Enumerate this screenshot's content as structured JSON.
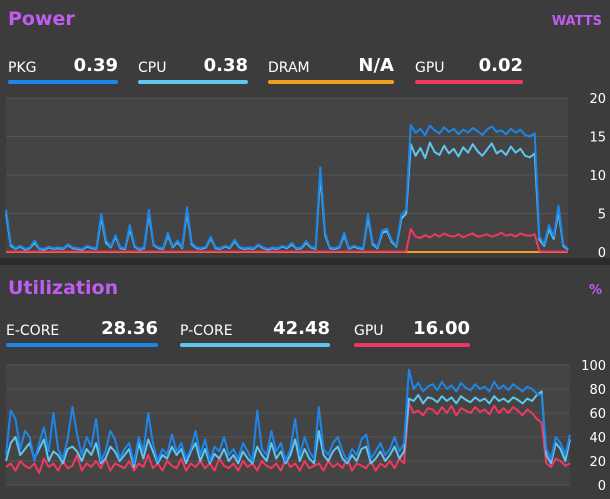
{
  "power": {
    "title": "Power",
    "unit": "WATTS",
    "metrics": [
      {
        "label": "PKG",
        "value": "0.39",
        "color": "#1e86e8"
      },
      {
        "label": "CPU",
        "value": "0.38",
        "color": "#5fc6f0"
      },
      {
        "label": "DRAM",
        "value": "N/A",
        "color": "#f0a020"
      },
      {
        "label": "GPU",
        "value": "0.02",
        "color": "#f03860"
      }
    ]
  },
  "utilization": {
    "title": "Utilization",
    "unit": "%",
    "metrics": [
      {
        "label": "E-CORE",
        "value": "28.36",
        "color": "#1e86e8"
      },
      {
        "label": "P-CORE",
        "value": "42.48",
        "color": "#5fc6f0"
      },
      {
        "label": "GPU",
        "value": "16.00",
        "color": "#f03860"
      }
    ]
  },
  "chart_data": [
    {
      "type": "line",
      "title": "Power",
      "ylabel": "WATTS",
      "ylim": [
        0,
        20
      ],
      "yticks": [
        "20",
        "15",
        "10",
        "5",
        "0"
      ],
      "series": [
        {
          "name": "PKG",
          "color": "#1e86e8",
          "values": [
            5.5,
            1.0,
            0.5,
            0.8,
            0.4,
            0.6,
            1.5,
            0.5,
            0.4,
            0.7,
            0.5,
            0.6,
            0.5,
            1.0,
            0.6,
            0.5,
            0.4,
            0.8,
            0.6,
            0.5,
            5.0,
            1.5,
            0.7,
            2.2,
            0.6,
            0.5,
            3.5,
            0.8,
            0.4,
            0.6,
            5.5,
            1.0,
            0.6,
            0.5,
            2.5,
            0.7,
            1.5,
            0.6,
            5.8,
            1.2,
            0.6,
            0.5,
            0.7,
            2.0,
            0.6,
            0.5,
            0.8,
            0.6,
            1.6,
            0.7,
            0.5,
            0.6,
            0.5,
            1.0,
            0.6,
            0.4,
            0.6,
            0.5,
            0.8,
            0.6,
            1.2,
            0.5,
            0.6,
            1.4,
            0.7,
            0.5,
            11.0,
            2.5,
            0.6,
            0.5,
            0.7,
            2.5,
            0.5,
            0.8,
            0.6,
            0.5,
            5.0,
            1.2,
            0.6,
            2.8,
            3.0,
            1.5,
            0.8,
            4.8,
            5.5,
            16.5,
            15.5,
            16.0,
            15.2,
            16.4,
            15.8,
            15.4,
            16.2,
            15.6,
            16.0,
            15.3,
            15.9,
            15.5,
            16.1,
            15.7,
            15.2,
            15.9,
            16.3,
            15.6,
            15.8,
            15.3,
            16.0,
            15.5,
            15.9,
            15.2,
            15.0,
            15.4,
            2.0,
            1.0,
            3.5,
            2.0,
            6.0,
            1.0,
            0.4
          ]
        },
        {
          "name": "CPU",
          "color": "#5fc6f0",
          "values": [
            5.0,
            0.8,
            0.4,
            0.7,
            0.3,
            0.5,
            1.2,
            0.4,
            0.3,
            0.6,
            0.4,
            0.5,
            0.4,
            0.9,
            0.5,
            0.4,
            0.3,
            0.7,
            0.5,
            0.4,
            4.5,
            1.2,
            0.6,
            2.0,
            0.5,
            0.4,
            3.0,
            0.7,
            0.3,
            0.5,
            5.0,
            0.9,
            0.5,
            0.4,
            2.2,
            0.6,
            1.3,
            0.5,
            5.2,
            1.0,
            0.5,
            0.4,
            0.6,
            1.8,
            0.5,
            0.4,
            0.7,
            0.5,
            1.4,
            0.6,
            0.4,
            0.5,
            0.4,
            0.9,
            0.5,
            0.3,
            0.5,
            0.4,
            0.7,
            0.5,
            1.0,
            0.4,
            0.5,
            1.2,
            0.6,
            0.4,
            10.0,
            2.2,
            0.5,
            0.4,
            0.6,
            2.2,
            0.4,
            0.7,
            0.5,
            0.4,
            4.5,
            1.0,
            0.5,
            2.5,
            2.7,
            1.3,
            0.7,
            4.3,
            5.0,
            14.0,
            12.5,
            13.5,
            12.2,
            14.2,
            13.0,
            12.6,
            13.8,
            12.8,
            13.4,
            12.4,
            13.6,
            12.9,
            14.0,
            13.1,
            12.5,
            13.3,
            14.1,
            12.8,
            13.2,
            12.6,
            13.7,
            12.9,
            13.4,
            12.5,
            12.3,
            12.8,
            1.6,
            0.8,
            3.0,
            1.7,
            5.3,
            0.8,
            0.3
          ]
        },
        {
          "name": "GPU",
          "color": "#f03860",
          "values": [
            0.05,
            0.05,
            0.05,
            0.05,
            0.05,
            0.05,
            0.05,
            0.05,
            0.05,
            0.05,
            0.05,
            0.05,
            0.05,
            0.05,
            0.05,
            0.05,
            0.05,
            0.05,
            0.05,
            0.05,
            0.05,
            0.05,
            0.05,
            0.05,
            0.05,
            0.05,
            0.05,
            0.05,
            0.05,
            0.05,
            0.05,
            0.05,
            0.05,
            0.05,
            0.05,
            0.05,
            0.05,
            0.05,
            0.05,
            0.05,
            0.05,
            0.05,
            0.05,
            0.05,
            0.05,
            0.05,
            0.05,
            0.05,
            0.05,
            0.05,
            0.05,
            0.05,
            0.05,
            0.05,
            0.05,
            0.05,
            0.05,
            0.05,
            0.05,
            0.05,
            0.05,
            0.05,
            0.05,
            0.05,
            0.05,
            0.05,
            0.05,
            0.05,
            0.05,
            0.05,
            0.05,
            0.05,
            0.05,
            0.05,
            0.05,
            0.05,
            0.05,
            0.05,
            0.05,
            0.05,
            0.05,
            0.05,
            0.05,
            0.05,
            0.05,
            3.0,
            2.0,
            1.8,
            2.2,
            1.9,
            2.3,
            2.0,
            2.4,
            2.1,
            2.0,
            2.3,
            1.9,
            2.2,
            2.4,
            2.0,
            2.1,
            2.3,
            2.0,
            2.2,
            2.5,
            2.1,
            2.3,
            2.0,
            2.4,
            2.2,
            2.1,
            2.3,
            0.1,
            0.05,
            0.05,
            0.05,
            0.05,
            0.05,
            0.05
          ]
        },
        {
          "name": "DRAM",
          "color": "#f0a020",
          "values": [
            0.0,
            0.0,
            0.0,
            0.0,
            0.0,
            0.0,
            0.0,
            0.0,
            0.0,
            0.0,
            0.0,
            0.0,
            0.0,
            0.0,
            0.0,
            0.0,
            0.0,
            0.0,
            0.0,
            0.0,
            0.0,
            0.0,
            0.0,
            0.0,
            0.0,
            0.0,
            0.0,
            0.0,
            0.0,
            0.0,
            0.0,
            0.0,
            0.0,
            0.0,
            0.0,
            0.0,
            0.0,
            0.0,
            0.0,
            0.0,
            0.0,
            0.0,
            0.0,
            0.0,
            0.0,
            0.0,
            0.0,
            0.0,
            0.0,
            0.0,
            0.0,
            0.0,
            0.0,
            0.0,
            0.0,
            0.0,
            0.0,
            0.0,
            0.0,
            0.0,
            0.0,
            0.0,
            0.0,
            0.0,
            0.0,
            0.0,
            0.0,
            0.0,
            0.0,
            0.0,
            0.0,
            0.0,
            0.0,
            0.0,
            0.0,
            0.0,
            0.0,
            0.0,
            0.0,
            0.0,
            0.0,
            0.0,
            0.0,
            0.0,
            0.0,
            0.0,
            0.0,
            0.0,
            0.0,
            0.0,
            0.0,
            0.0,
            0.0,
            0.0,
            0.0,
            0.0,
            0.0,
            0.0,
            0.0,
            0.0,
            0.0,
            0.0,
            0.0,
            0.0,
            0.0,
            0.0,
            0.0,
            0.0,
            0.0,
            0.0,
            0.0,
            0.0,
            0.0,
            0.0,
            0.0,
            0.0,
            0.0,
            0.0,
            0.0
          ]
        }
      ]
    },
    {
      "type": "line",
      "title": "Utilization",
      "ylabel": "%",
      "ylim": [
        0,
        100
      ],
      "yticks": [
        "100",
        "80",
        "60",
        "40",
        "20",
        "0"
      ],
      "series": [
        {
          "name": "E-CORE",
          "color": "#1e86e8",
          "values": [
            25,
            62,
            55,
            30,
            45,
            40,
            20,
            35,
            48,
            28,
            60,
            30,
            22,
            38,
            65,
            42,
            25,
            40,
            32,
            55,
            20,
            28,
            45,
            38,
            22,
            30,
            35,
            18,
            40,
            28,
            60,
            35,
            20,
            30,
            25,
            42,
            28,
            35,
            22,
            30,
            45,
            25,
            38,
            20,
            32,
            28,
            40,
            25,
            30,
            22,
            35,
            28,
            20,
            62,
            30,
            25,
            45,
            28,
            35,
            20,
            30,
            55,
            25,
            40,
            28,
            22,
            65,
            30,
            25,
            35,
            40,
            28,
            20,
            30,
            25,
            38,
            42,
            22,
            28,
            35,
            25,
            30,
            40,
            28,
            35,
            96,
            80,
            85,
            78,
            82,
            84,
            79,
            86,
            80,
            83,
            78,
            85,
            81,
            79,
            84,
            80,
            82,
            78,
            86,
            80,
            83,
            79,
            84,
            81,
            78,
            82,
            80,
            76,
            75,
            30,
            22,
            40,
            35,
            25,
            42
          ]
        },
        {
          "name": "P-CORE",
          "color": "#5fc6f0",
          "values": [
            20,
            35,
            40,
            25,
            30,
            35,
            22,
            30,
            38,
            20,
            28,
            25,
            18,
            30,
            32,
            28,
            20,
            30,
            25,
            35,
            18,
            22,
            32,
            28,
            20,
            25,
            30,
            15,
            35,
            22,
            38,
            28,
            18,
            25,
            22,
            32,
            25,
            30,
            18,
            28,
            35,
            20,
            30,
            18,
            26,
            22,
            30,
            20,
            25,
            18,
            28,
            22,
            18,
            32,
            25,
            20,
            35,
            22,
            28,
            18,
            25,
            38,
            20,
            30,
            22,
            18,
            45,
            25,
            20,
            28,
            32,
            22,
            18,
            25,
            20,
            30,
            32,
            18,
            22,
            28,
            20,
            25,
            32,
            22,
            28,
            72,
            70,
            75,
            68,
            73,
            72,
            69,
            74,
            70,
            73,
            68,
            74,
            71,
            69,
            73,
            70,
            72,
            68,
            74,
            70,
            72,
            69,
            73,
            71,
            68,
            72,
            70,
            75,
            78,
            25,
            18,
            35,
            30,
            20,
            38
          ]
        },
        {
          "name": "GPU",
          "color": "#f03860",
          "values": [
            15,
            18,
            12,
            20,
            16,
            14,
            18,
            10,
            22,
            15,
            18,
            12,
            20,
            14,
            16,
            25,
            12,
            18,
            15,
            20,
            14,
            22,
            12,
            18,
            16,
            14,
            20,
            12,
            18,
            15,
            25,
            14,
            18,
            12,
            20,
            16,
            14,
            22,
            12,
            18,
            15,
            20,
            14,
            18,
            12,
            22,
            16,
            14,
            18,
            12,
            20,
            15,
            18,
            12,
            20,
            16,
            14,
            18,
            12,
            22,
            15,
            18,
            12,
            20,
            14,
            16,
            18,
            12,
            20,
            15,
            18,
            14,
            22,
            12,
            18,
            16,
            14,
            20,
            12,
            18,
            15,
            20,
            14,
            22,
            18,
            68,
            60,
            62,
            58,
            64,
            63,
            59,
            65,
            60,
            66,
            58,
            64,
            62,
            60,
            65,
            61,
            63,
            59,
            66,
            60,
            64,
            60,
            65,
            62,
            58,
            63,
            60,
            55,
            52,
            18,
            15,
            22,
            20,
            16,
            18
          ]
        }
      ]
    }
  ]
}
